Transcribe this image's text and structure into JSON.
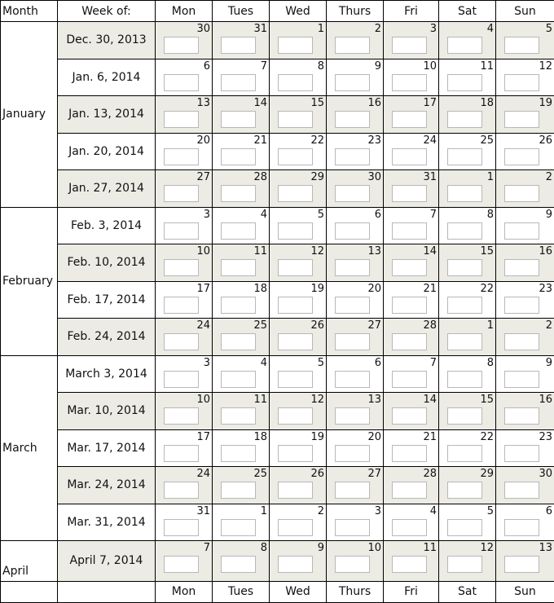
{
  "header": {
    "month": "Month",
    "week_of": "Week of:",
    "days": [
      "Mon",
      "Tues",
      "Wed",
      "Thurs",
      "Fri",
      "Sat",
      "Sun"
    ]
  },
  "months": [
    {
      "name": "January",
      "span": 5
    },
    {
      "name": "February",
      "span": 4
    },
    {
      "name": "March",
      "span": 5
    },
    {
      "name": "April",
      "span": 1
    }
  ],
  "weeks": [
    {
      "label": "Dec. 30, 2013",
      "days": [
        "30",
        "31",
        "1",
        "2",
        "3",
        "4",
        "5"
      ]
    },
    {
      "label": "Jan. 6, 2014",
      "days": [
        "6",
        "7",
        "8",
        "9",
        "10",
        "11",
        "12"
      ]
    },
    {
      "label": "Jan. 13, 2014",
      "days": [
        "13",
        "14",
        "15",
        "16",
        "17",
        "18",
        "19"
      ]
    },
    {
      "label": "Jan. 20, 2014",
      "days": [
        "20",
        "21",
        "22",
        "23",
        "24",
        "25",
        "26"
      ]
    },
    {
      "label": "Jan. 27, 2014",
      "days": [
        "27",
        "28",
        "29",
        "30",
        "31",
        "1",
        "2"
      ]
    },
    {
      "label": "Feb. 3, 2014",
      "days": [
        "3",
        "4",
        "5",
        "6",
        "7",
        "8",
        "9"
      ]
    },
    {
      "label": "Feb. 10, 2014",
      "days": [
        "10",
        "11",
        "12",
        "13",
        "14",
        "15",
        "16"
      ]
    },
    {
      "label": "Feb. 17, 2014",
      "days": [
        "17",
        "18",
        "19",
        "20",
        "21",
        "22",
        "23"
      ]
    },
    {
      "label": "Feb. 24, 2014",
      "days": [
        "24",
        "25",
        "26",
        "27",
        "28",
        "1",
        "2"
      ]
    },
    {
      "label": "March 3, 2014",
      "days": [
        "3",
        "4",
        "5",
        "6",
        "7",
        "8",
        "9"
      ]
    },
    {
      "label": "Mar. 10, 2014",
      "days": [
        "10",
        "11",
        "12",
        "13",
        "14",
        "15",
        "16"
      ]
    },
    {
      "label": "Mar. 17, 2014",
      "days": [
        "17",
        "18",
        "19",
        "20",
        "21",
        "22",
        "23"
      ]
    },
    {
      "label": "Mar. 24, 2014",
      "days": [
        "24",
        "25",
        "26",
        "27",
        "28",
        "29",
        "30"
      ]
    },
    {
      "label": "Mar. 31, 2014",
      "days": [
        "31",
        "1",
        "2",
        "3",
        "4",
        "5",
        "6"
      ]
    },
    {
      "label": "April 7, 2014",
      "days": [
        "7",
        "8",
        "9",
        "10",
        "11",
        "12",
        "13"
      ]
    }
  ],
  "colors": {
    "shaded_row": "#ecebe4",
    "input_border": "#b8b8b8"
  }
}
